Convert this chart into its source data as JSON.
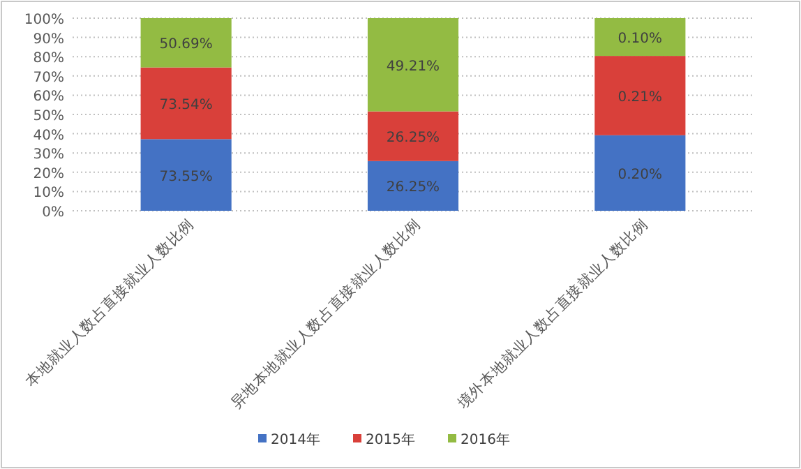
{
  "chart_data": {
    "type": "bar",
    "stacked": true,
    "categories": [
      "本地就业人数占直接就业人数比例",
      "异地本地就业人数占直接就业人数比例",
      "境外本地就业人数占直接就业人数比例"
    ],
    "series": [
      {
        "name": "2014年",
        "color": "#4472c4",
        "values": [
          37.2,
          25.8,
          39.2
        ]
      },
      {
        "name": "2015年",
        "color": "#d9403a",
        "values": [
          37.2,
          25.8,
          41.2
        ]
      },
      {
        "name": "2016年",
        "color": "#93bb43",
        "values": [
          25.6,
          48.4,
          19.6
        ]
      }
    ],
    "annotations": [
      "73.55%",
      "73.54%",
      "50.69%",
      "26.25%",
      "26.25%",
      "49.21%",
      "0.20%",
      "0.21%",
      "0.10%"
    ],
    "ylim": [
      0,
      100
    ],
    "yticks": [
      {
        "value": 0,
        "label": "0%"
      },
      {
        "value": 10,
        "label": "10%"
      },
      {
        "value": 20,
        "label": "20%"
      },
      {
        "value": 30,
        "label": "30%"
      },
      {
        "value": 40,
        "label": "40%"
      },
      {
        "value": 50,
        "label": "50%"
      },
      {
        "value": 60,
        "label": "60%"
      },
      {
        "value": 70,
        "label": "70%"
      },
      {
        "value": 80,
        "label": "80%"
      },
      {
        "value": 90,
        "label": "90%"
      },
      {
        "value": 100,
        "label": "100%"
      }
    ],
    "grid": "y",
    "legend": "bottom"
  }
}
